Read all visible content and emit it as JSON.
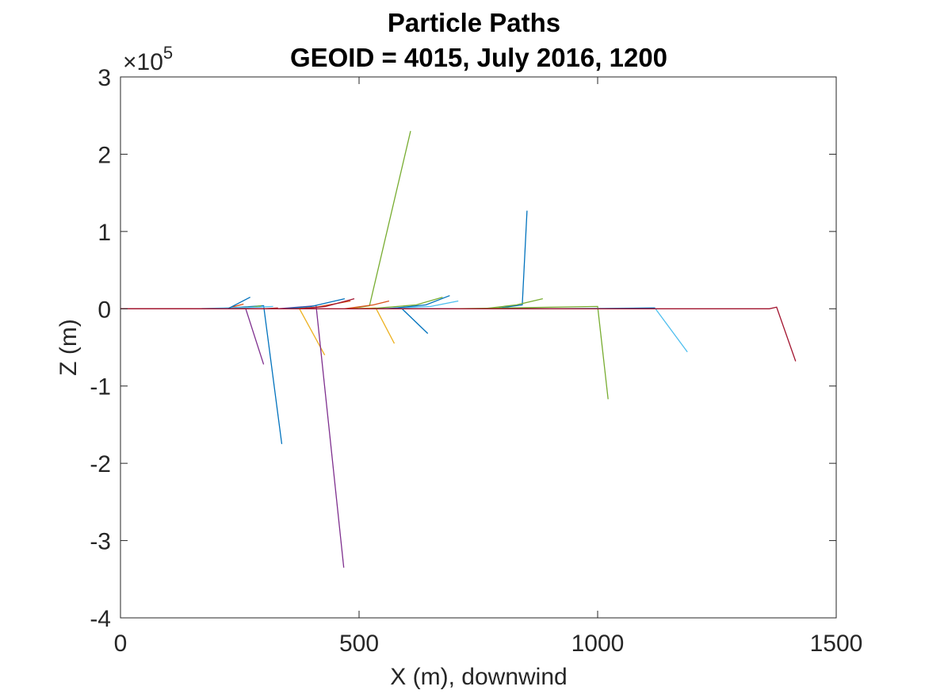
{
  "chart_data": {
    "type": "line",
    "title": "Particle Paths",
    "subtitle": "GEOID = 4015, July 2016, 1200",
    "xlabel": "X (m), downwind",
    "ylabel": "Z (m)",
    "y_exponent_label": "×10",
    "y_exponent_power": "5",
    "xlim": [
      0,
      1500
    ],
    "ylim": [
      -4,
      3
    ],
    "y_scale_note": "y values in units of 1e5 m",
    "xticks": [
      0,
      500,
      1000,
      1500
    ],
    "xtick_labels": [
      "0",
      "500",
      "1000",
      "1500"
    ],
    "yticks": [
      3,
      2,
      1,
      0,
      -1,
      -2,
      -3,
      -4
    ],
    "ytick_labels": [
      "3",
      "2",
      "1",
      "0",
      "-1",
      "-2",
      "-3",
      "-4"
    ],
    "grid": false,
    "series": [
      {
        "color": "#0072BD",
        "x": [
          0,
          200,
          300,
          338
        ],
        "y": [
          0,
          0,
          0.04,
          -1.75
        ]
      },
      {
        "color": "#D95319",
        "x": [
          0,
          220,
          258
        ],
        "y": [
          0,
          0,
          0.06
        ]
      },
      {
        "color": "#EDB120",
        "x": [
          170,
          250,
          268
        ],
        "y": [
          0,
          0.01,
          0.02
        ]
      },
      {
        "color": "#7E2F8E",
        "x": [
          240,
          262,
          300
        ],
        "y": [
          0,
          0.01,
          -0.72
        ]
      },
      {
        "color": "#77AC30",
        "x": [
          200,
          275,
          295
        ],
        "y": [
          0,
          0.02,
          0.04
        ]
      },
      {
        "color": "#4DBEEE",
        "x": [
          150,
          290,
          320
        ],
        "y": [
          0,
          0.02,
          0.03
        ]
      },
      {
        "color": "#A2142F",
        "x": [
          0,
          300,
          330
        ],
        "y": [
          0,
          0,
          0.01
        ]
      },
      {
        "color": "#0072BD",
        "x": [
          200,
          225,
          272
        ],
        "y": [
          0,
          0,
          0.15
        ]
      },
      {
        "color": "#EDB120",
        "x": [
          300,
          375,
          428
        ],
        "y": [
          0,
          0,
          -0.6
        ]
      },
      {
        "color": "#7E2F8E",
        "x": [
          330,
          410,
          468
        ],
        "y": [
          0,
          0.04,
          -3.35
        ]
      },
      {
        "color": "#D95319",
        "x": [
          360,
          410,
          482
        ],
        "y": [
          0,
          0.02,
          0.1
        ]
      },
      {
        "color": "#A2142F",
        "x": [
          380,
          430,
          490
        ],
        "y": [
          0,
          0.03,
          0.13
        ]
      },
      {
        "color": "#0072BD",
        "x": [
          340,
          400,
          470
        ],
        "y": [
          0,
          0.03,
          0.13
        ]
      },
      {
        "color": "#77AC30",
        "x": [
          480,
          522,
          608
        ],
        "y": [
          0,
          0.04,
          2.3
        ]
      },
      {
        "color": "#EDB120",
        "x": [
          480,
          535,
          574
        ],
        "y": [
          0,
          0.01,
          -0.45
        ]
      },
      {
        "color": "#D95319",
        "x": [
          470,
          530,
          563
        ],
        "y": [
          0,
          0.05,
          0.1
        ]
      },
      {
        "color": "#0072BD",
        "x": [
          500,
          590,
          644
        ],
        "y": [
          0,
          0,
          -0.32
        ]
      },
      {
        "color": "#77AC30",
        "x": [
          520,
          620,
          675
        ],
        "y": [
          0,
          0.05,
          0.15
        ]
      },
      {
        "color": "#4DBEEE",
        "x": [
          540,
          650,
          708
        ],
        "y": [
          0,
          0.03,
          0.1
        ]
      },
      {
        "color": "#0072BD",
        "x": [
          560,
          640,
          690
        ],
        "y": [
          0,
          0.05,
          0.17
        ]
      },
      {
        "color": "#7E2F8E",
        "x": [
          550,
          700,
          780
        ],
        "y": [
          0,
          0,
          0
        ]
      },
      {
        "color": "#0072BD",
        "x": [
          600,
          780,
          842,
          852
        ],
        "y": [
          0,
          0,
          0.05,
          1.27
        ]
      },
      {
        "color": "#77AC30",
        "x": [
          760,
          830,
          885
        ],
        "y": [
          0,
          0.05,
          0.13
        ]
      },
      {
        "color": "#77AC30",
        "x": [
          700,
          1000,
          1022
        ],
        "y": [
          0,
          0.03,
          -1.17
        ]
      },
      {
        "color": "#4DBEEE",
        "x": [
          900,
          1120,
          1188
        ],
        "y": [
          0,
          0.01,
          -0.56
        ]
      },
      {
        "color": "#0072BD",
        "x": [
          800,
          1000,
          1120
        ],
        "y": [
          0,
          0,
          0.01
        ]
      },
      {
        "color": "#A2142F",
        "x": [
          0,
          1360,
          1375,
          1415
        ],
        "y": [
          0,
          0,
          0.02,
          -0.68
        ]
      }
    ]
  }
}
